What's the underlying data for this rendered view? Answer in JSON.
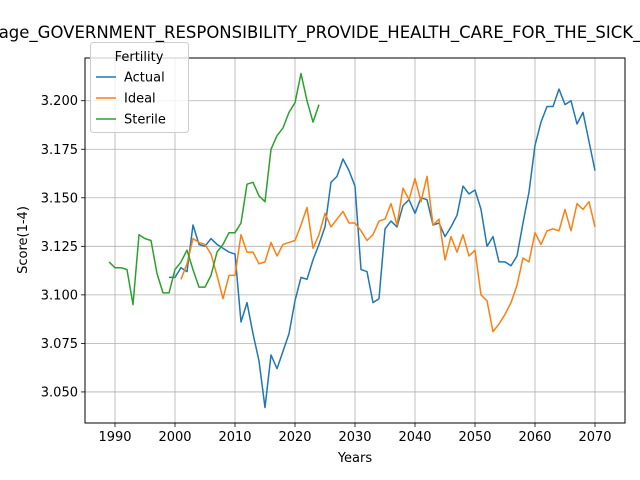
{
  "chart_data": {
    "type": "line",
    "title": "age_GOVERNMENT_RESPONSIBILITY_PROVIDE_HEALTH_CARE_FOR_THE_SICK_",
    "xlabel": "Years",
    "ylabel": "Score(1-4)",
    "xlim": [
      1985,
      2075
    ],
    "ylim": [
      3.034,
      3.222
    ],
    "xticks": [
      1990,
      2000,
      2010,
      2020,
      2030,
      2040,
      2050,
      2060,
      2070
    ],
    "yticks": [
      3.05,
      3.075,
      3.1,
      3.125,
      3.15,
      3.175,
      3.2
    ],
    "grid": true,
    "legend": {
      "title": "Fertility",
      "placement": "upper-left"
    },
    "series": [
      {
        "name": "Actual",
        "color": "#1f77b4",
        "x": [
          1999,
          2000,
          2001,
          2002,
          2003,
          2004,
          2005,
          2006,
          2007,
          2008,
          2009,
          2010,
          2011,
          2012,
          2013,
          2014,
          2015,
          2016,
          2017,
          2018,
          2019,
          2020,
          2021,
          2022,
          2023,
          2024,
          2025,
          2026,
          2027,
          2028,
          2029,
          2030,
          2031,
          2032,
          2033,
          2034,
          2035,
          2036,
          2037,
          2038,
          2039,
          2040,
          2041,
          2042,
          2043,
          2044,
          2045,
          2046,
          2047,
          2048,
          2049,
          2050,
          2051,
          2052,
          2053,
          2054,
          2055,
          2056,
          2057,
          2058,
          2059,
          2060,
          2061,
          2062,
          2063,
          2064,
          2065,
          2066,
          2067,
          2068,
          2069,
          2070
        ],
        "y": [
          3.109,
          3.109,
          3.114,
          3.112,
          3.136,
          3.126,
          3.125,
          3.129,
          3.126,
          3.124,
          3.122,
          3.121,
          3.086,
          3.096,
          3.08,
          3.066,
          3.042,
          3.069,
          3.062,
          3.071,
          3.08,
          3.097,
          3.109,
          3.108,
          3.118,
          3.126,
          3.135,
          3.158,
          3.161,
          3.17,
          3.164,
          3.156,
          3.113,
          3.112,
          3.096,
          3.098,
          3.134,
          3.138,
          3.135,
          3.146,
          3.149,
          3.142,
          3.15,
          3.149,
          3.136,
          3.137,
          3.13,
          3.135,
          3.141,
          3.156,
          3.152,
          3.154,
          3.144,
          3.125,
          3.13,
          3.117,
          3.117,
          3.115,
          3.12,
          3.137,
          3.153,
          3.177,
          3.189,
          3.197,
          3.197,
          3.206,
          3.198,
          3.2,
          3.188,
          3.194,
          3.179,
          3.164
        ]
      },
      {
        "name": "Ideal",
        "color": "#ff7f0e",
        "x": [
          2001,
          2002,
          2003,
          2004,
          2005,
          2006,
          2007,
          2008,
          2009,
          2010,
          2011,
          2012,
          2013,
          2014,
          2015,
          2016,
          2017,
          2018,
          2019,
          2020,
          2021,
          2022,
          2023,
          2024,
          2025,
          2026,
          2027,
          2028,
          2029,
          2030,
          2031,
          2032,
          2033,
          2034,
          2035,
          2036,
          2037,
          2038,
          2039,
          2040,
          2041,
          2042,
          2043,
          2044,
          2045,
          2046,
          2047,
          2048,
          2049,
          2050,
          2051,
          2052,
          2053,
          2054,
          2055,
          2056,
          2057,
          2058,
          2059,
          2060,
          2061,
          2062,
          2063,
          2064,
          2065,
          2066,
          2067,
          2068,
          2069,
          2070
        ],
        "y": [
          3.108,
          3.116,
          3.129,
          3.127,
          3.126,
          3.121,
          3.11,
          3.098,
          3.11,
          3.11,
          3.131,
          3.122,
          3.122,
          3.116,
          3.117,
          3.127,
          3.12,
          3.126,
          3.127,
          3.128,
          3.136,
          3.145,
          3.124,
          3.131,
          3.142,
          3.135,
          3.139,
          3.143,
          3.137,
          3.137,
          3.133,
          3.128,
          3.131,
          3.138,
          3.139,
          3.147,
          3.136,
          3.155,
          3.149,
          3.16,
          3.148,
          3.161,
          3.136,
          3.139,
          3.118,
          3.13,
          3.122,
          3.131,
          3.12,
          3.123,
          3.1,
          3.097,
          3.081,
          3.085,
          3.09,
          3.096,
          3.105,
          3.119,
          3.117,
          3.132,
          3.126,
          3.133,
          3.134,
          3.133,
          3.144,
          3.133,
          3.147,
          3.144,
          3.148,
          3.135
        ]
      },
      {
        "name": "Sterile",
        "color": "#2ca02c",
        "x": [
          1989,
          1990,
          1991,
          1992,
          1993,
          1994,
          1995,
          1996,
          1997,
          1998,
          1999,
          2000,
          2001,
          2002,
          2003,
          2004,
          2005,
          2006,
          2007,
          2008,
          2009,
          2010,
          2011,
          2012,
          2013,
          2014,
          2015,
          2016,
          2017,
          2018,
          2019,
          2020,
          2021,
          2022,
          2023,
          2024
        ],
        "y": [
          3.117,
          3.114,
          3.114,
          3.113,
          3.095,
          3.131,
          3.129,
          3.128,
          3.111,
          3.101,
          3.101,
          3.113,
          3.117,
          3.123,
          3.113,
          3.104,
          3.104,
          3.11,
          3.122,
          3.126,
          3.132,
          3.132,
          3.137,
          3.157,
          3.158,
          3.151,
          3.148,
          3.175,
          3.182,
          3.186,
          3.194,
          3.199,
          3.214,
          3.2,
          3.189,
          3.198
        ]
      }
    ]
  }
}
